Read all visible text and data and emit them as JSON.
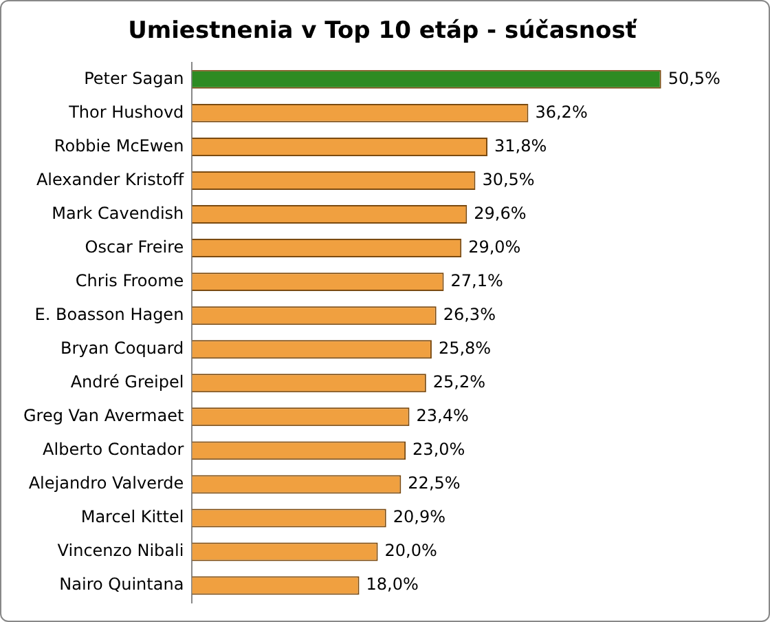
{
  "chart_data": {
    "type": "bar",
    "orientation": "horizontal",
    "title": "Umiestnenia v Top 10 etáp - súčasnosť",
    "categories": [
      "Peter Sagan",
      "Thor Hushovd",
      "Robbie McEwen",
      "Alexander Kristoff",
      "Mark Cavendish",
      "Oscar Freire",
      "Chris Froome",
      "E. Boasson Hagen",
      "Bryan Coquard",
      "André Greipel",
      "Greg Van Avermaet",
      "Alberto Contador",
      "Alejandro Valverde",
      "Marcel Kittel",
      "Vincenzo Nibali",
      "Nairo Quintana"
    ],
    "values": [
      50.5,
      36.2,
      31.8,
      30.5,
      29.6,
      29.0,
      27.1,
      26.3,
      25.8,
      25.2,
      23.4,
      23.0,
      22.5,
      20.9,
      20.0,
      18.0
    ],
    "value_labels": [
      "50,5%",
      "36,2%",
      "31,8%",
      "30,5%",
      "29,6%",
      "29,0%",
      "27,1%",
      "26,3%",
      "25,8%",
      "25,2%",
      "23,4%",
      "23,0%",
      "22,5%",
      "20,9%",
      "20,0%",
      "18,0%"
    ],
    "colors": [
      "#2e8b22",
      "#f0a040",
      "#f0a040",
      "#f0a040",
      "#f0a040",
      "#f0a040",
      "#f0a040",
      "#f0a040",
      "#f0a040",
      "#f0a040",
      "#f0a040",
      "#f0a040",
      "#f0a040",
      "#f0a040",
      "#f0a040",
      "#f0a040"
    ],
    "grid": false,
    "legend": false
  }
}
